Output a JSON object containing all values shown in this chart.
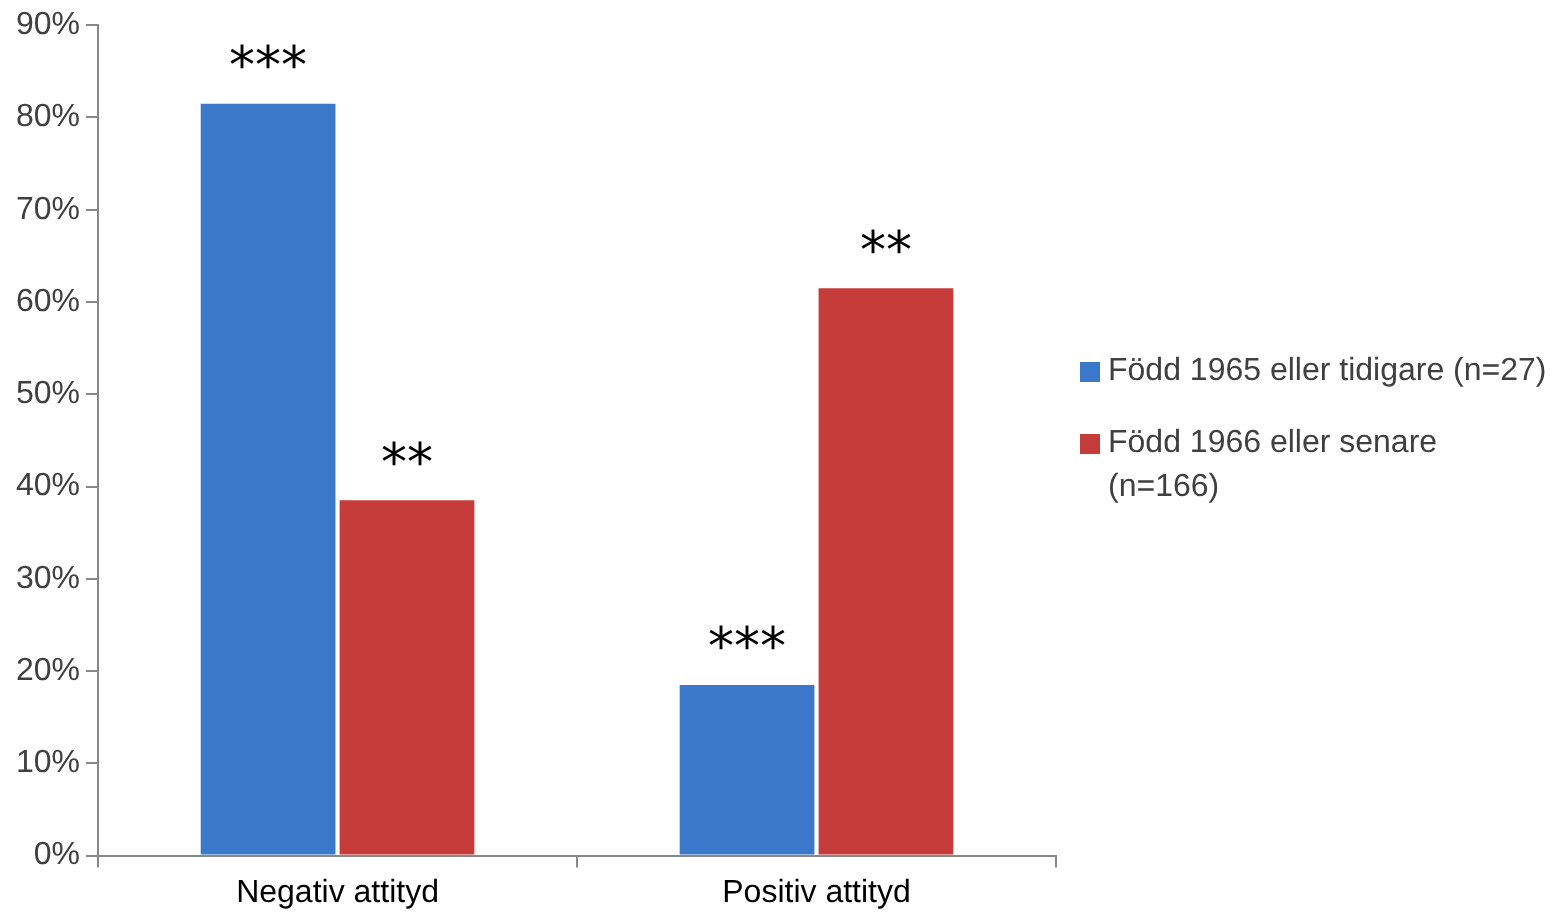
{
  "chart_data": {
    "type": "bar",
    "categories": [
      "Negativ attityd",
      "Positiv attityd"
    ],
    "series": [
      {
        "name": "Född 1965 eller tidigare (n=27)",
        "color": "#3b78c9",
        "values": [
          81.5,
          18.5
        ],
        "value_labels": [
          "***",
          "***"
        ]
      },
      {
        "name": "Född 1966 eller senare (n=166)",
        "color": "#c63c3b",
        "values": [
          38.5,
          61.5
        ],
        "value_labels": [
          "**",
          "**"
        ]
      }
    ],
    "ylim": [
      0,
      90
    ],
    "yticks": [
      {
        "value": 0,
        "label": "0%"
      },
      {
        "value": 10,
        "label": "10%"
      },
      {
        "value": 20,
        "label": "20%"
      },
      {
        "value": 30,
        "label": "30%"
      },
      {
        "value": 40,
        "label": "40%"
      },
      {
        "value": 50,
        "label": "50%"
      },
      {
        "value": 60,
        "label": "60%"
      },
      {
        "value": 70,
        "label": "70%"
      },
      {
        "value": 80,
        "label": "80%"
      },
      {
        "value": 90,
        "label": "90%"
      }
    ],
    "grid": false,
    "legend": "right"
  }
}
